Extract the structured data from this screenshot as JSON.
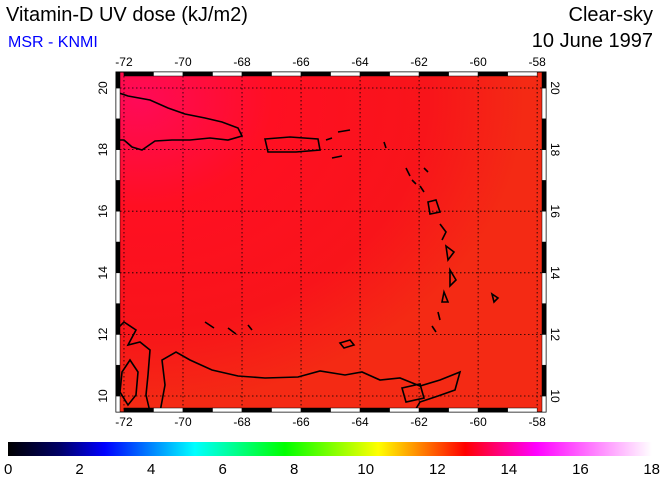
{
  "header": {
    "title": "Vitamin-D UV dose (kJ/m2)",
    "source": "MSR - KNMI",
    "condition": "Clear-sky",
    "date": "10 June 1997"
  },
  "map": {
    "lon_ticks": [
      "-72",
      "-70",
      "-68",
      "-66",
      "-64",
      "-62",
      "-60",
      "-58"
    ],
    "lat_ticks": [
      "20",
      "18",
      "16",
      "14",
      "12",
      "10"
    ],
    "lon_range": [
      -72.27,
      -57.7
    ],
    "lat_range": [
      9.48,
      20.52
    ],
    "dominant_value_range": [
      13,
      14.5
    ]
  },
  "colorbar": {
    "labels": [
      "0",
      "2",
      "4",
      "6",
      "8",
      "10",
      "12",
      "14",
      "16",
      "18"
    ],
    "range": [
      0,
      18
    ],
    "colors": [
      "#000000",
      "#000066",
      "#0000ff",
      "#00ffff",
      "#00ff00",
      "#ffff00",
      "#ff0000",
      "#ff00ff",
      "#ffffff"
    ]
  }
}
